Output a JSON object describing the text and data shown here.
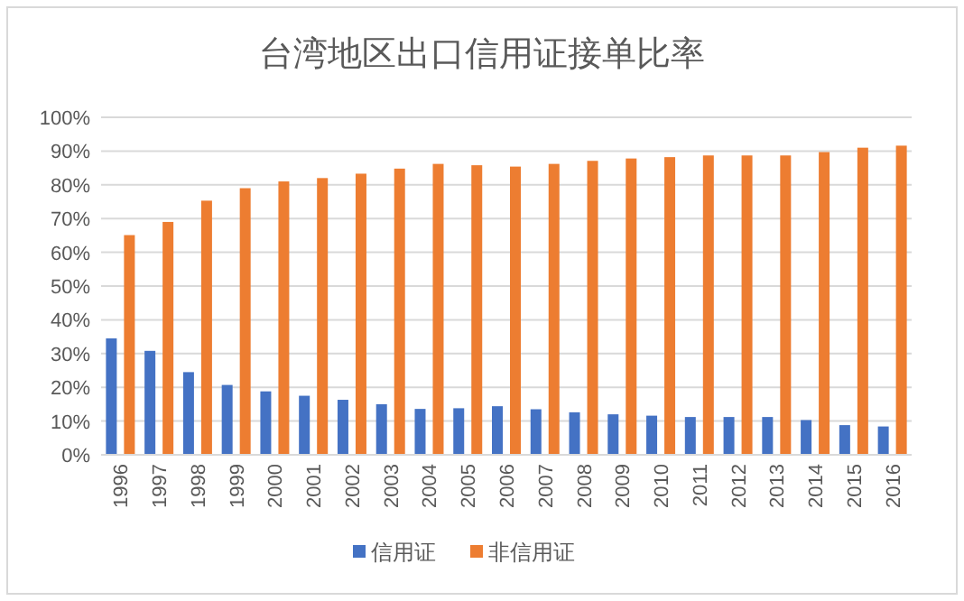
{
  "chart_data": {
    "type": "bar",
    "title": "台湾地区出口信用证接单比率",
    "categories": [
      "1996",
      "1997",
      "1998",
      "1999",
      "2000",
      "2001",
      "2002",
      "2003",
      "2004",
      "2005",
      "2006",
      "2007",
      "2008",
      "2009",
      "2010",
      "2011",
      "2012",
      "2013",
      "2014",
      "2015",
      "2016"
    ],
    "series": [
      {
        "name": "信用证",
        "color": "#4472c4",
        "values": [
          34.5,
          30.8,
          24.5,
          20.7,
          18.8,
          17.5,
          16.3,
          15,
          13.6,
          13.8,
          14.4,
          13.5,
          12.6,
          12,
          11.6,
          11.2,
          11.2,
          11.2,
          10.3,
          8.8,
          8.4
        ]
      },
      {
        "name": "非信用证",
        "color": "#ed7d31",
        "values": [
          65.1,
          69,
          75.3,
          79,
          81,
          82,
          83.3,
          84.8,
          86.2,
          85.8,
          85.4,
          86.2,
          87.1,
          87.8,
          88.2,
          88.7,
          88.7,
          88.7,
          89.7,
          91,
          91.6
        ]
      }
    ],
    "ylim": [
      0,
      100
    ],
    "yticks": [
      {
        "value": 0,
        "label": "0%"
      },
      {
        "value": 10,
        "label": "10%"
      },
      {
        "value": 20,
        "label": "20%"
      },
      {
        "value": 30,
        "label": "30%"
      },
      {
        "value": 40,
        "label": "40%"
      },
      {
        "value": 50,
        "label": "50%"
      },
      {
        "value": 60,
        "label": "60%"
      },
      {
        "value": 70,
        "label": "70%"
      },
      {
        "value": 80,
        "label": "80%"
      },
      {
        "value": 90,
        "label": "90%"
      },
      {
        "value": 100,
        "label": "100%"
      }
    ],
    "grid": "y",
    "legend": "bottom"
  }
}
